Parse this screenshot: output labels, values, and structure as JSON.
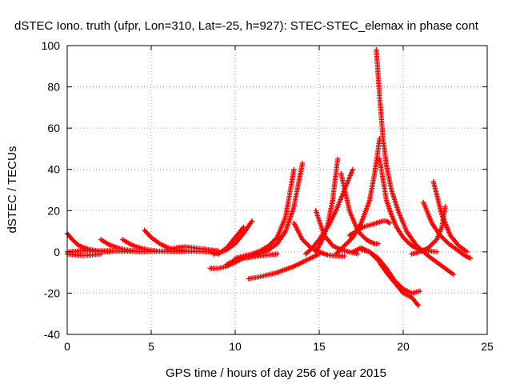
{
  "chart_data": {
    "type": "scatter",
    "title": "dSTEC Iono. truth (ufpr, Lon=310, Lat=-25, h=927): STEC-STEC_elemax in phase cont",
    "xlabel": "GPS time / hours of day 256 of year 2015",
    "ylabel": "dSTEC  / TECUs",
    "xlim": [
      0,
      25
    ],
    "ylim": [
      -40,
      100
    ],
    "x_ticks": [
      "0",
      "5",
      "10",
      "15",
      "20",
      "25"
    ],
    "y_ticks": [
      "-40",
      "-20",
      "0",
      "20",
      "40",
      "60",
      "80",
      "100"
    ],
    "grid": true,
    "marker": "+",
    "color": "#ff0000",
    "series": [
      {
        "x": [
          0.0,
          0.5,
          1.0,
          1.5,
          2.5,
          3.5,
          4.5,
          5.5,
          6.5,
          7.5,
          8.5,
          9.0
        ],
        "y": [
          0,
          0.3,
          0.5,
          0.5,
          0.5,
          0.3,
          0.2,
          0.3,
          0.2,
          0.3,
          0,
          -1
        ]
      },
      {
        "x": [
          0.0,
          0.3,
          0.7,
          1.2,
          1.8,
          2.5
        ],
        "y": [
          9,
          6,
          3,
          1.5,
          0.5,
          0
        ]
      },
      {
        "x": [
          0.0,
          0.5,
          1.0,
          1.5,
          2.0
        ],
        "y": [
          -1,
          -1.5,
          -1.8,
          -1.5,
          -1
        ]
      },
      {
        "x": [
          2.0,
          2.5,
          3.0,
          3.5,
          4.0
        ],
        "y": [
          6,
          3.5,
          2,
          1,
          0.5
        ]
      },
      {
        "x": [
          3.3,
          3.8,
          4.3,
          4.8,
          5.3
        ],
        "y": [
          6,
          3.5,
          2,
          1,
          0.5
        ]
      },
      {
        "x": [
          4.6,
          5.0,
          5.5,
          6.0,
          6.5,
          7.0
        ],
        "y": [
          10.5,
          7,
          4,
          2,
          1,
          0.5
        ]
      },
      {
        "x": [
          6.0,
          6.5,
          7.0,
          7.5,
          8.0,
          8.5,
          9.0
        ],
        "y": [
          1,
          2,
          2.5,
          2,
          1.5,
          1,
          0.5
        ]
      },
      {
        "x": [
          8.7,
          9.0,
          9.5,
          10.0,
          10.5,
          11.0
        ],
        "y": [
          -1,
          -0.5,
          1,
          4,
          9,
          15
        ]
      },
      {
        "x": [
          9.0,
          9.5,
          10.0,
          10.5
        ],
        "y": [
          -1,
          2,
          7,
          12
        ]
      },
      {
        "x": [
          8.5,
          9.0,
          9.5,
          10.0,
          10.5
        ],
        "y": [
          -8,
          -8,
          -7,
          -5,
          -3
        ]
      },
      {
        "x": [
          9.5,
          10.0,
          10.5,
          11.0,
          11.5,
          12.0,
          12.5
        ],
        "y": [
          -6,
          -4,
          -3,
          -2.5,
          -2,
          -1.5,
          -1
        ]
      },
      {
        "x": [
          10.0,
          10.5,
          11.0,
          11.5,
          12.0,
          12.5,
          13.0,
          13.5
        ],
        "y": [
          -3,
          -2,
          -1,
          0.5,
          3,
          7,
          17,
          40
        ]
      },
      {
        "x": [
          10.5,
          11.0,
          11.5,
          12.0,
          12.5,
          13.0,
          13.5,
          14.0
        ],
        "y": [
          -3,
          -2,
          -0.5,
          1,
          4,
          10,
          22,
          43
        ]
      },
      {
        "x": [
          10.8,
          11.5,
          12.0,
          12.5,
          13.0,
          13.5,
          14.0,
          14.5,
          15.0
        ],
        "y": [
          -13,
          -12,
          -11,
          -10,
          -8.5,
          -7,
          -5,
          -3,
          -1
        ]
      },
      {
        "x": [
          13.5,
          14.0,
          14.5,
          15.0,
          15.5,
          16.0,
          16.5
        ],
        "y": [
          14,
          6,
          2,
          0,
          -1.5,
          -2,
          -2
        ]
      },
      {
        "x": [
          14.8,
          15.2,
          15.5,
          15.8,
          16.1
        ],
        "y": [
          0,
          6,
          13,
          25,
          45
        ]
      },
      {
        "x": [
          14.2,
          14.6,
          15.0,
          15.5,
          16.0,
          16.5,
          17.0
        ],
        "y": [
          -1,
          2,
          6,
          12,
          20,
          30,
          40
        ]
      },
      {
        "x": [
          14.8,
          15.3,
          15.8,
          16.3,
          16.8,
          17.3
        ],
        "y": [
          20,
          8,
          3,
          1,
          0,
          -1
        ]
      },
      {
        "x": [
          16.3,
          16.8,
          17.3,
          17.8,
          18.0,
          18.3,
          18.5
        ],
        "y": [
          38,
          20,
          10,
          6,
          5,
          4,
          4
        ]
      },
      {
        "x": [
          16.0,
          16.5,
          17.0,
          17.5,
          18.0,
          18.3,
          18.6
        ],
        "y": [
          -1,
          3,
          7,
          14,
          25,
          38,
          55
        ]
      },
      {
        "x": [
          16.8,
          17.2,
          17.6,
          18.0,
          18.4,
          18.8,
          19.0,
          19.2
        ],
        "y": [
          8,
          10,
          12,
          13,
          14,
          15,
          15,
          14
        ]
      },
      {
        "x": [
          18.4,
          18.6,
          18.8,
          19.0,
          19.3,
          19.7,
          20.2,
          20.8,
          21.5,
          22.5,
          23.0
        ],
        "y": [
          98,
          75,
          55,
          42,
          30,
          20,
          10,
          3,
          -2,
          -8,
          -11
        ]
      },
      {
        "x": [
          18.6,
          18.8,
          19.0,
          19.3,
          19.6,
          20.0,
          20.5,
          21.0,
          21.5,
          22.0
        ],
        "y": [
          45,
          35,
          25,
          18,
          12,
          7,
          3,
          1,
          0.5,
          0
        ]
      },
      {
        "x": [
          17.0,
          17.5,
          18.0,
          18.5,
          19.0,
          19.5,
          20.0,
          20.5,
          20.9
        ],
        "y": [
          0,
          2,
          0,
          -4,
          -10,
          -15,
          -20,
          -22,
          -26
        ]
      },
      {
        "x": [
          17.5,
          18.0,
          18.5,
          19.0,
          19.5,
          20.0,
          20.5,
          21.0
        ],
        "y": [
          1,
          0,
          -3,
          -8,
          -14,
          -18,
          -20,
          -19
        ]
      },
      {
        "x": [
          21.2,
          21.7,
          22.2,
          22.7,
          23.2,
          23.7,
          24.0
        ],
        "y": [
          24,
          14,
          8,
          4,
          1,
          -2,
          -3
        ]
      },
      {
        "x": [
          21.8,
          22.3,
          22.8,
          23.3,
          23.8
        ],
        "y": [
          34,
          18,
          8,
          3,
          0
        ]
      },
      {
        "x": [
          20.5,
          21.0,
          21.5,
          22.0,
          22.3,
          22.5
        ],
        "y": [
          -1,
          0,
          2,
          6,
          12,
          22
        ]
      }
    ]
  }
}
